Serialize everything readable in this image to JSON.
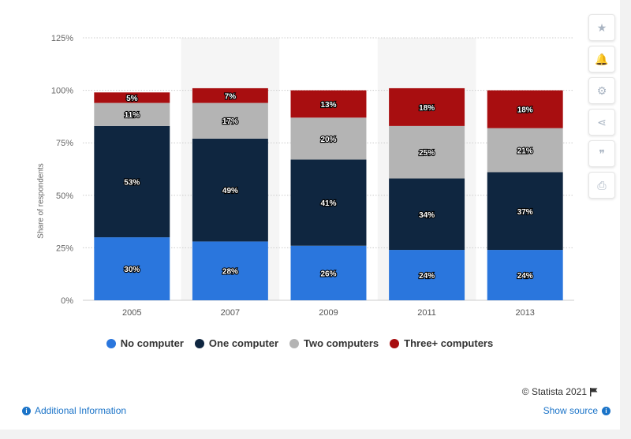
{
  "chart_data": {
    "type": "bar",
    "stacked": true,
    "categories": [
      "2005",
      "2007",
      "2009",
      "2011",
      "2013"
    ],
    "series": [
      {
        "name": "No computer",
        "values": [
          30,
          28,
          26,
          24,
          24
        ],
        "color": "#2a76dd"
      },
      {
        "name": "One computer",
        "values": [
          53,
          49,
          41,
          34,
          37
        ],
        "color": "#0f2640"
      },
      {
        "name": "Two computers",
        "values": [
          11,
          17,
          20,
          25,
          21
        ],
        "color": "#b4b4b4"
      },
      {
        "name": "Three+ computers",
        "values": [
          5,
          7,
          13,
          18,
          18
        ],
        "color": "#a80e10"
      }
    ],
    "ylabel": "Share of respondents",
    "ylim": [
      0,
      125
    ],
    "yticks": [
      "0%",
      "25%",
      "50%",
      "75%",
      "100%",
      "125%"
    ],
    "grid": true,
    "legend": "bottom-center"
  },
  "sidebar": [
    {
      "icon": "star-icon",
      "glyph": "★"
    },
    {
      "icon": "bell-icon",
      "glyph": "🔔"
    },
    {
      "icon": "gear-icon",
      "glyph": "⚙"
    },
    {
      "icon": "share-icon",
      "glyph": "⋖"
    },
    {
      "icon": "quote-icon",
      "glyph": "❞"
    },
    {
      "icon": "print-icon",
      "glyph": "⎙"
    }
  ],
  "footer": {
    "copyright": "© Statista 2021",
    "additional_info": "Additional Information",
    "show_source": "Show source"
  }
}
